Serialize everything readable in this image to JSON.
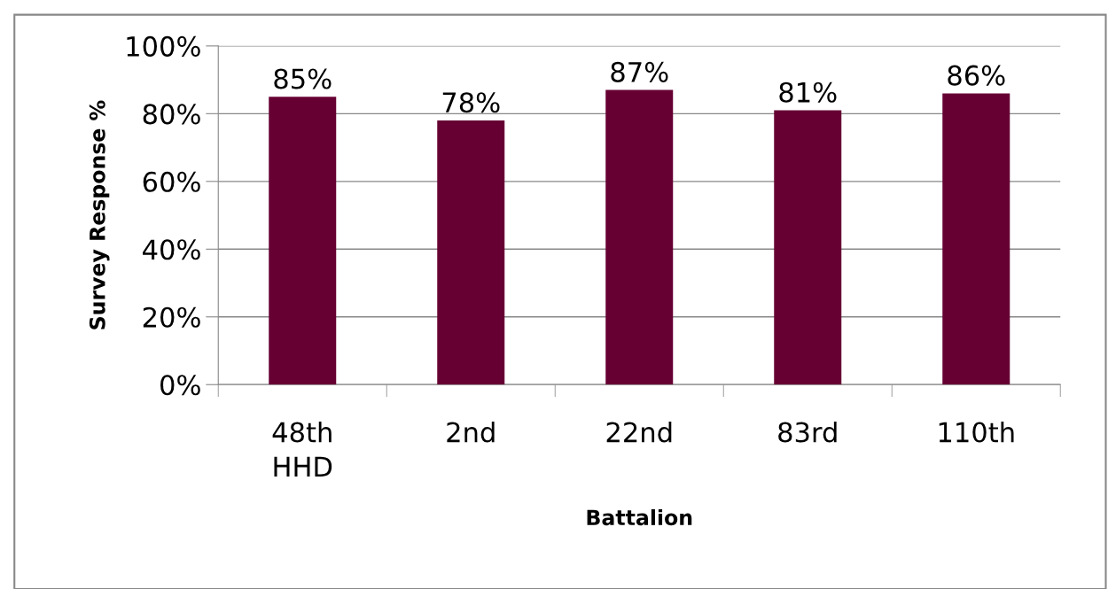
{
  "chart_data": {
    "type": "bar",
    "xlabel": "Battalion",
    "ylabel": "Survey Response %",
    "categories": [
      "48th\nHHD",
      "2nd",
      "22nd",
      "83rd",
      "110th"
    ],
    "values": [
      85,
      78,
      87,
      81,
      86
    ],
    "color": "#660033",
    "value_labels": [
      "85%",
      "78%",
      "87%",
      "81%",
      "86%"
    ],
    "ylim": [
      0,
      100
    ],
    "yticks": [
      {
        "value": 0,
        "label": "0%"
      },
      {
        "value": 20,
        "label": "20%"
      },
      {
        "value": 40,
        "label": "40%"
      },
      {
        "value": 60,
        "label": "60%"
      },
      {
        "value": 80,
        "label": "80%"
      },
      {
        "value": 100,
        "label": "100%"
      }
    ],
    "grid": "y"
  }
}
